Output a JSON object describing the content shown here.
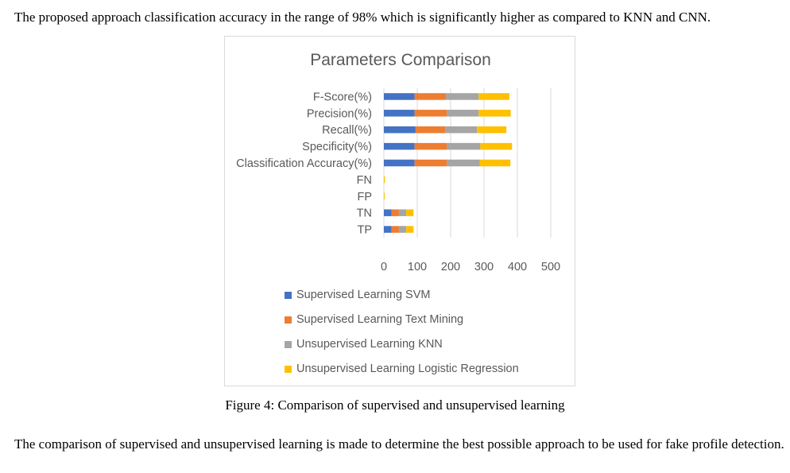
{
  "intro_text": "The proposed approach classification accuracy in the range of 98% which is significantly higher as compared to KNN and CNN.",
  "caption": "Figure 4: Comparison of supervised and unsupervised learning",
  "outro_text": "The comparison of supervised and unsupervised learning is made to determine the best possible approach to be used for fake profile detection.",
  "chart_data": {
    "type": "bar",
    "orientation": "horizontal",
    "stacked": true,
    "title": "Parameters Comparison",
    "categories": [
      "F-Score(%)",
      "Precision(%)",
      "Recall(%)",
      "Specificity(%)",
      "Classification Accuracy(%)",
      "FN",
      "FP",
      "TN",
      "TP"
    ],
    "series": [
      {
        "name": "Supervised Learning SVM",
        "color": "#4472C4",
        "values": [
          92,
          92,
          95,
          92,
          92,
          0,
          0,
          23,
          23
        ]
      },
      {
        "name": "Supervised Learning Text Mining",
        "color": "#ED7D31",
        "values": [
          94,
          97,
          89,
          97,
          97,
          0,
          0,
          22,
          22
        ]
      },
      {
        "name": "Unsupervised Learning KNN",
        "color": "#A5A5A5",
        "values": [
          98,
          95,
          95,
          100,
          98,
          0,
          0,
          22,
          22
        ]
      },
      {
        "name": "Unsupervised Learning Logistic Regression",
        "color": "#FFC000",
        "values": [
          92,
          96,
          88,
          95,
          92,
          3,
          2,
          22,
          22
        ]
      }
    ],
    "xlim": [
      0,
      500
    ],
    "xticks": [
      0,
      100,
      200,
      300,
      400,
      500
    ],
    "grid": true,
    "legend_position": "bottom"
  }
}
